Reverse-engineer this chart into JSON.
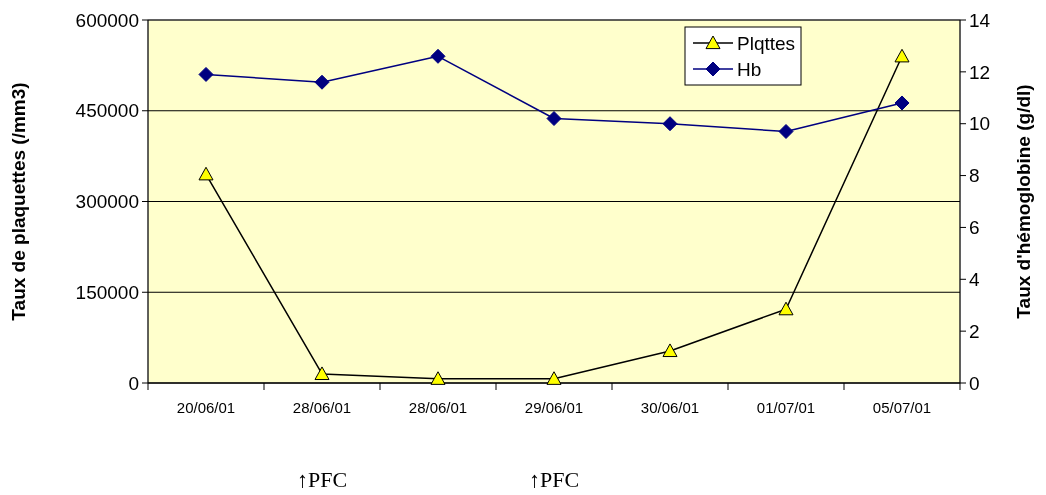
{
  "chart_data": {
    "type": "line",
    "ylabel": "Taux de plaquettes (/mm3)",
    "y2label": "Taux d'hémoglobine (g/dl)",
    "categories": [
      "20/06/01",
      "28/06/01",
      "28/06/01",
      "29/06/01",
      "30/06/01",
      "01/07/01",
      "05/07/01"
    ],
    "series": [
      {
        "name": "Plqttes",
        "color": "#ffff00",
        "marker": "triangle",
        "values": [
          345000,
          15000,
          7000,
          7000,
          53000,
          122000,
          540000
        ]
      },
      {
        "name": "Hb",
        "color": "#000080",
        "marker": "diamond",
        "axis": "y2",
        "values": [
          11.9,
          11.6,
          12.6,
          10.2,
          10.0,
          9.7,
          10.8
        ]
      }
    ],
    "ylim": [
      0,
      600000
    ],
    "yticks": [
      0,
      150000,
      300000,
      450000,
      600000
    ],
    "y2lim": [
      0,
      14
    ],
    "y2ticks": [
      0,
      2,
      4,
      6,
      8,
      10,
      12,
      14
    ],
    "grid": "y",
    "legend": "top right",
    "annotations": [
      "↑PFC",
      "↑PFC"
    ]
  }
}
